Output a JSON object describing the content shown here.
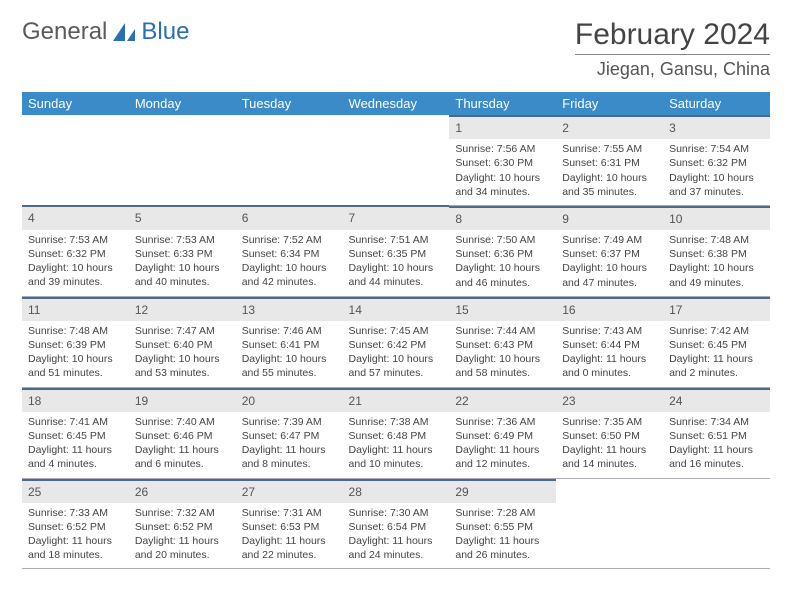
{
  "logo": {
    "text1": "General",
    "text2": "Blue",
    "text1_color": "#6a6a6a",
    "text2_color": "#2a6fb0",
    "sail_color": "#2a6fb0"
  },
  "title": "February 2024",
  "location": "Jiegan, Gansu, China",
  "header_bg": "#3b8bc9",
  "daynum_bg": "#e8e8e8",
  "daynum_border": "#4a6a8a",
  "weekdays": [
    "Sunday",
    "Monday",
    "Tuesday",
    "Wednesday",
    "Thursday",
    "Friday",
    "Saturday"
  ],
  "weeks": [
    [
      null,
      null,
      null,
      null,
      {
        "n": "1",
        "sr": "7:56 AM",
        "ss": "6:30 PM",
        "dl": "10 hours and 34 minutes."
      },
      {
        "n": "2",
        "sr": "7:55 AM",
        "ss": "6:31 PM",
        "dl": "10 hours and 35 minutes."
      },
      {
        "n": "3",
        "sr": "7:54 AM",
        "ss": "6:32 PM",
        "dl": "10 hours and 37 minutes."
      }
    ],
    [
      {
        "n": "4",
        "sr": "7:53 AM",
        "ss": "6:32 PM",
        "dl": "10 hours and 39 minutes."
      },
      {
        "n": "5",
        "sr": "7:53 AM",
        "ss": "6:33 PM",
        "dl": "10 hours and 40 minutes."
      },
      {
        "n": "6",
        "sr": "7:52 AM",
        "ss": "6:34 PM",
        "dl": "10 hours and 42 minutes."
      },
      {
        "n": "7",
        "sr": "7:51 AM",
        "ss": "6:35 PM",
        "dl": "10 hours and 44 minutes."
      },
      {
        "n": "8",
        "sr": "7:50 AM",
        "ss": "6:36 PM",
        "dl": "10 hours and 46 minutes."
      },
      {
        "n": "9",
        "sr": "7:49 AM",
        "ss": "6:37 PM",
        "dl": "10 hours and 47 minutes."
      },
      {
        "n": "10",
        "sr": "7:48 AM",
        "ss": "6:38 PM",
        "dl": "10 hours and 49 minutes."
      }
    ],
    [
      {
        "n": "11",
        "sr": "7:48 AM",
        "ss": "6:39 PM",
        "dl": "10 hours and 51 minutes."
      },
      {
        "n": "12",
        "sr": "7:47 AM",
        "ss": "6:40 PM",
        "dl": "10 hours and 53 minutes."
      },
      {
        "n": "13",
        "sr": "7:46 AM",
        "ss": "6:41 PM",
        "dl": "10 hours and 55 minutes."
      },
      {
        "n": "14",
        "sr": "7:45 AM",
        "ss": "6:42 PM",
        "dl": "10 hours and 57 minutes."
      },
      {
        "n": "15",
        "sr": "7:44 AM",
        "ss": "6:43 PM",
        "dl": "10 hours and 58 minutes."
      },
      {
        "n": "16",
        "sr": "7:43 AM",
        "ss": "6:44 PM",
        "dl": "11 hours and 0 minutes."
      },
      {
        "n": "17",
        "sr": "7:42 AM",
        "ss": "6:45 PM",
        "dl": "11 hours and 2 minutes."
      }
    ],
    [
      {
        "n": "18",
        "sr": "7:41 AM",
        "ss": "6:45 PM",
        "dl": "11 hours and 4 minutes."
      },
      {
        "n": "19",
        "sr": "7:40 AM",
        "ss": "6:46 PM",
        "dl": "11 hours and 6 minutes."
      },
      {
        "n": "20",
        "sr": "7:39 AM",
        "ss": "6:47 PM",
        "dl": "11 hours and 8 minutes."
      },
      {
        "n": "21",
        "sr": "7:38 AM",
        "ss": "6:48 PM",
        "dl": "11 hours and 10 minutes."
      },
      {
        "n": "22",
        "sr": "7:36 AM",
        "ss": "6:49 PM",
        "dl": "11 hours and 12 minutes."
      },
      {
        "n": "23",
        "sr": "7:35 AM",
        "ss": "6:50 PM",
        "dl": "11 hours and 14 minutes."
      },
      {
        "n": "24",
        "sr": "7:34 AM",
        "ss": "6:51 PM",
        "dl": "11 hours and 16 minutes."
      }
    ],
    [
      {
        "n": "25",
        "sr": "7:33 AM",
        "ss": "6:52 PM",
        "dl": "11 hours and 18 minutes."
      },
      {
        "n": "26",
        "sr": "7:32 AM",
        "ss": "6:52 PM",
        "dl": "11 hours and 20 minutes."
      },
      {
        "n": "27",
        "sr": "7:31 AM",
        "ss": "6:53 PM",
        "dl": "11 hours and 22 minutes."
      },
      {
        "n": "28",
        "sr": "7:30 AM",
        "ss": "6:54 PM",
        "dl": "11 hours and 24 minutes."
      },
      {
        "n": "29",
        "sr": "7:28 AM",
        "ss": "6:55 PM",
        "dl": "11 hours and 26 minutes."
      },
      null,
      null
    ]
  ],
  "labels": {
    "sunrise": "Sunrise:",
    "sunset": "Sunset:",
    "daylight": "Daylight:"
  }
}
